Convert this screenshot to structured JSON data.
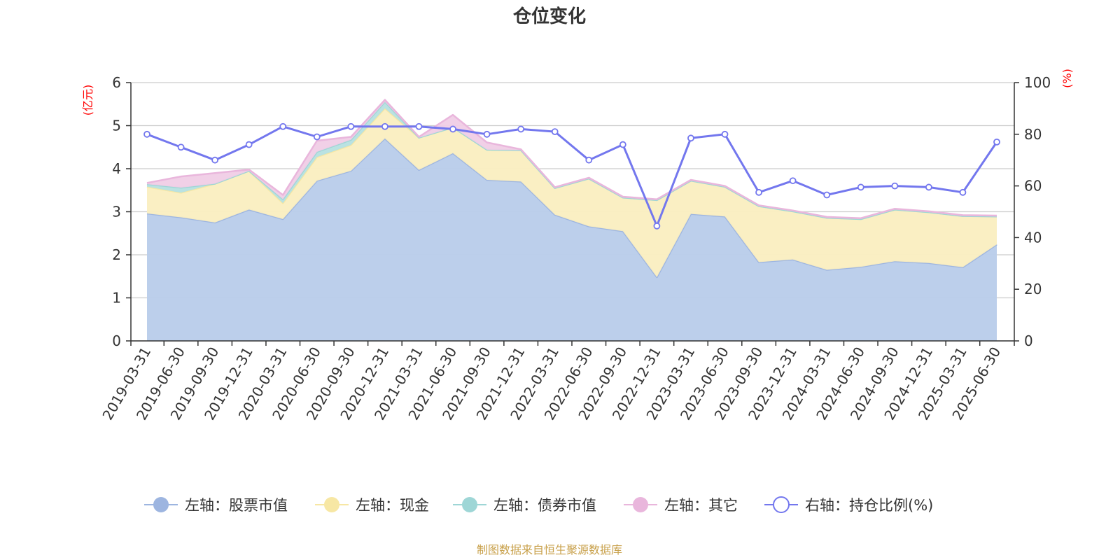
{
  "chart_data": {
    "type": "area",
    "title": "仓位变化",
    "left_axis_unit": "(亿元)",
    "right_axis_unit": "(%)",
    "left_ylim": [
      0,
      6
    ],
    "left_ticks": [
      "0",
      "1",
      "2",
      "3",
      "4",
      "5",
      "6"
    ],
    "right_ylim": [
      0,
      100
    ],
    "right_ticks": [
      "0",
      "20",
      "40",
      "60",
      "80",
      "100"
    ],
    "grid": true,
    "legend_position": "bottom",
    "categories": [
      "2019-03-31",
      "2019-06-30",
      "2019-09-30",
      "2019-12-31",
      "2020-03-31",
      "2020-06-30",
      "2020-09-30",
      "2020-12-31",
      "2021-03-31",
      "2021-06-30",
      "2021-09-30",
      "2021-12-31",
      "2022-03-31",
      "2022-06-30",
      "2022-09-30",
      "2022-12-31",
      "2023-03-31",
      "2023-06-30",
      "2023-09-30",
      "2023-12-31",
      "2024-03-31",
      "2024-06-30",
      "2024-09-30",
      "2024-12-31",
      "2025-03-31",
      "2025-06-30"
    ],
    "series": [
      {
        "name": "左轴：股票市值",
        "axis": "left",
        "kind": "stacked-area",
        "color": "#9db5e0",
        "fill": "#b8ccea",
        "values": [
          2.96,
          2.87,
          2.75,
          3.05,
          2.83,
          3.72,
          3.95,
          4.7,
          3.97,
          4.36,
          3.74,
          3.7,
          2.93,
          2.66,
          2.55,
          1.48,
          2.95,
          2.89,
          1.83,
          1.89,
          1.65,
          1.72,
          1.85,
          1.81,
          1.71,
          2.24
        ]
      },
      {
        "name": "左轴：现金",
        "axis": "left",
        "kind": "stacked-area",
        "color": "#f7e7a4",
        "fill": "#faeec0",
        "values": [
          0.62,
          0.57,
          0.9,
          0.9,
          0.37,
          0.55,
          0.6,
          0.7,
          0.75,
          0.6,
          0.7,
          0.73,
          0.62,
          1.11,
          0.78,
          1.79,
          0.77,
          0.69,
          1.3,
          1.12,
          1.21,
          1.11,
          1.2,
          1.18,
          1.19,
          0.65
        ]
      },
      {
        "name": "左轴：债券市值",
        "axis": "left",
        "kind": "stacked-area",
        "color": "#9ed6d6",
        "fill": "#b6e0e0",
        "values": [
          0.06,
          0.12,
          0,
          0,
          0.09,
          0.12,
          0.12,
          0.15,
          0,
          0,
          0,
          0,
          0,
          0,
          0,
          0,
          0,
          0,
          0,
          0,
          0,
          0,
          0,
          0,
          0,
          0
        ]
      },
      {
        "name": "左轴：其它",
        "axis": "left",
        "kind": "stacked-area",
        "color": "#e9b6dc",
        "fill": "#f0cde6",
        "values": [
          0.03,
          0.26,
          0.25,
          0.03,
          0.1,
          0.26,
          0.07,
          0.05,
          0.02,
          0.29,
          0.17,
          0.02,
          0.02,
          0.02,
          0.02,
          0.02,
          0.02,
          0.02,
          0.02,
          0.02,
          0.02,
          0.02,
          0.02,
          0.02,
          0.02,
          0.02
        ]
      },
      {
        "name": "右轴：持仓比例(%)",
        "axis": "right",
        "kind": "line",
        "color": "#7377ee",
        "values": [
          80,
          75,
          70,
          76,
          83,
          79,
          83,
          83,
          83,
          82,
          80,
          82,
          81,
          70,
          76,
          44.5,
          78.5,
          80,
          57.5,
          62,
          56.5,
          59.5,
          60,
          59.5,
          57.5,
          77
        ]
      }
    ]
  },
  "footer": {
    "source": "制图数据来自恒生聚源数据库"
  }
}
